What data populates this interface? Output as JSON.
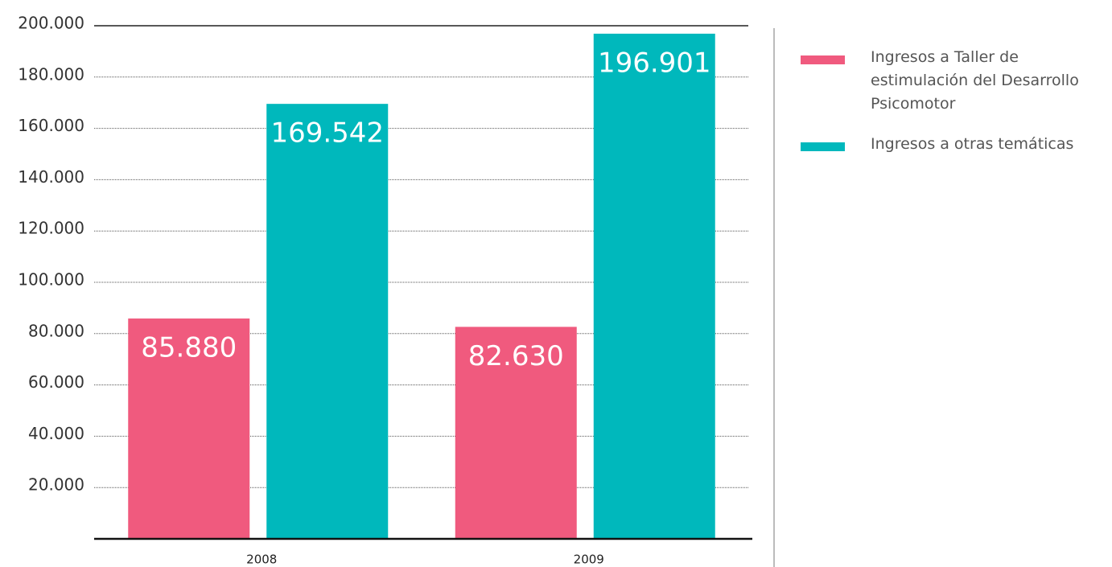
{
  "chart_data": {
    "type": "bar",
    "categories": [
      "2008",
      "2009"
    ],
    "series": [
      {
        "name": "Ingresos a Taller de estimulación del Desarrollo Psicomotor",
        "color": "#f05a7e",
        "values": [
          85880,
          82630
        ],
        "value_labels": [
          "85.880",
          "82.630"
        ]
      },
      {
        "name": "Ingresos a otras temáticas",
        "color": "#00b8bc",
        "values": [
          169542,
          196901
        ],
        "value_labels": [
          "169.542",
          "196.901"
        ]
      }
    ],
    "ylim": [
      0,
      200000
    ],
    "yticks": [
      {
        "value": 20000,
        "label": "20.000"
      },
      {
        "value": 40000,
        "label": "40.000"
      },
      {
        "value": 60000,
        "label": "60.000"
      },
      {
        "value": 80000,
        "label": "80.000"
      },
      {
        "value": 100000,
        "label": "100.000"
      },
      {
        "value": 120000,
        "label": "120.000"
      },
      {
        "value": 140000,
        "label": "140.000"
      },
      {
        "value": 160000,
        "label": "160.000"
      },
      {
        "value": 180000,
        "label": "180.000"
      },
      {
        "value": 200000,
        "label": "200.000"
      }
    ],
    "grid": true
  }
}
